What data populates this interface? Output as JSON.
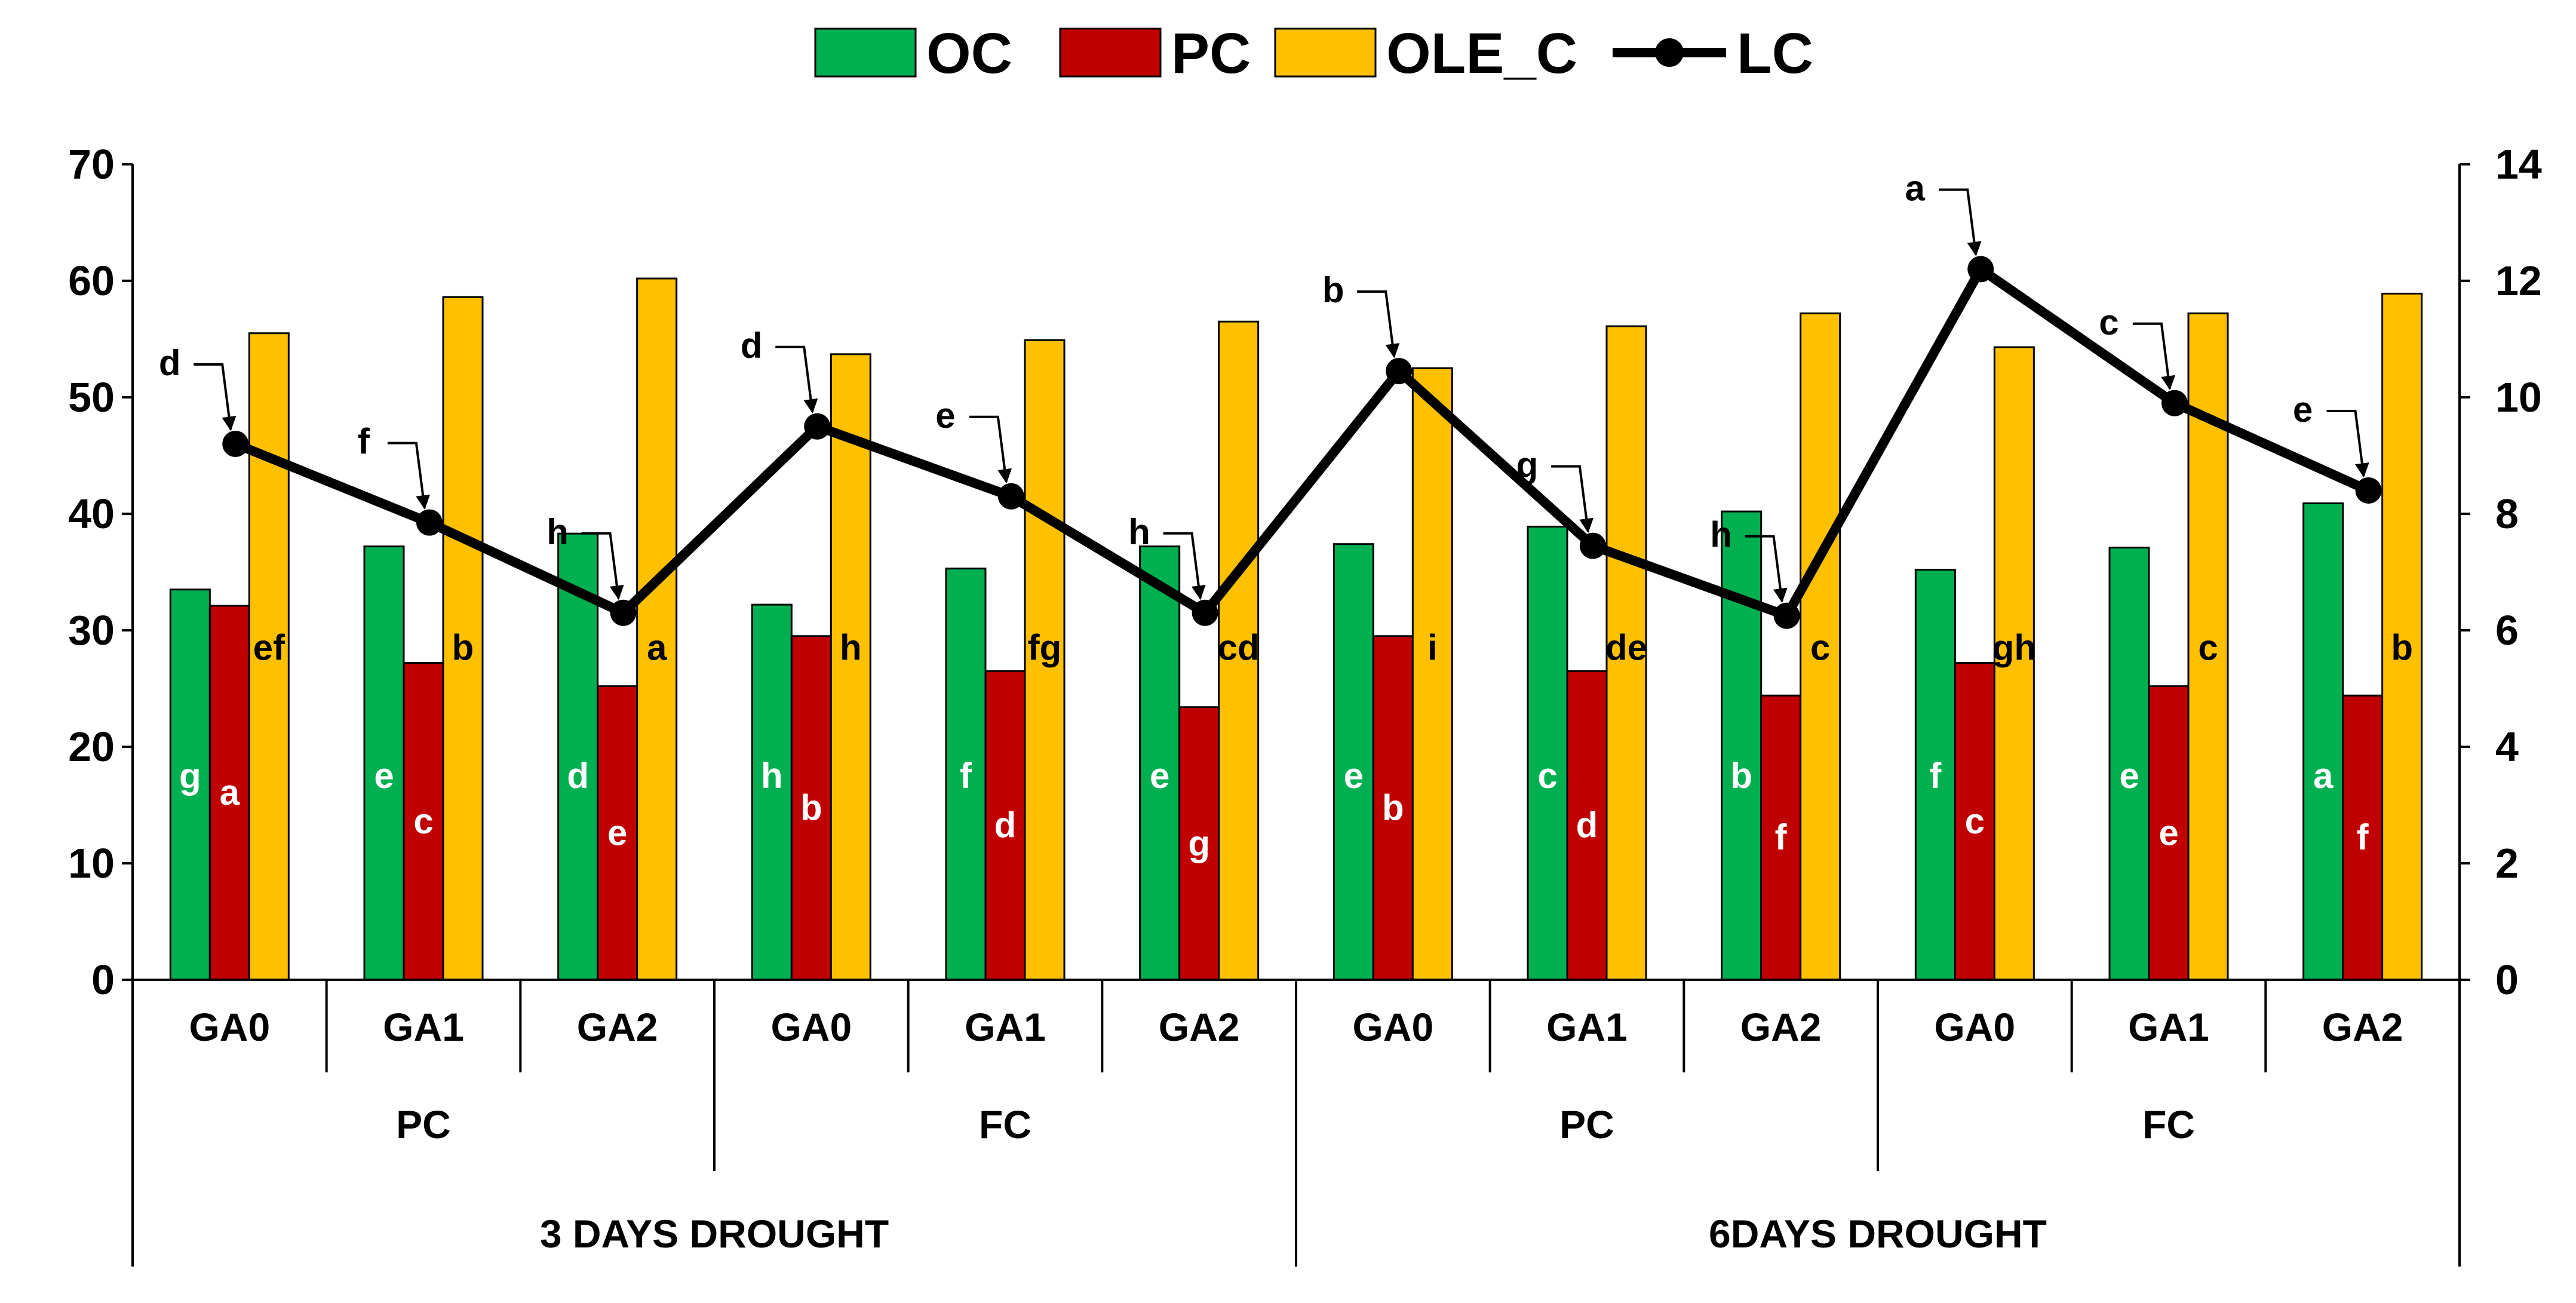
{
  "chart_data": {
    "type": "bar",
    "series": [
      {
        "name": "OC",
        "kind": "bar",
        "color": "#00b050",
        "values": [
          33.5,
          37.2,
          38.3,
          32.2,
          35.3,
          37.2,
          37.4,
          38.9,
          40.2,
          35.2,
          37.1,
          40.9
        ],
        "letters": [
          "g",
          "e",
          "d",
          "h",
          "f",
          "e",
          "e",
          "c",
          "b",
          "f",
          "e",
          "a"
        ]
      },
      {
        "name": "PC",
        "kind": "bar",
        "color": "#c00000",
        "values": [
          32.1,
          27.2,
          25.2,
          29.5,
          26.5,
          23.4,
          29.5,
          26.5,
          24.4,
          27.2,
          25.2,
          24.4
        ],
        "letters": [
          "a",
          "c",
          "e",
          "b",
          "d",
          "g",
          "b",
          "d",
          "f",
          "c",
          "e",
          "f"
        ]
      },
      {
        "name": "OLE_C",
        "kind": "bar",
        "color": "#ffc000",
        "values": [
          55.5,
          58.6,
          60.2,
          53.7,
          54.9,
          56.5,
          52.5,
          56.1,
          57.2,
          54.3,
          57.2,
          58.9
        ],
        "letters": [
          "ef",
          "b",
          "a",
          "h",
          "fg",
          "cd",
          "i",
          "de",
          "c",
          "gh",
          "c",
          "b"
        ]
      },
      {
        "name": "LC",
        "kind": "line",
        "axis": "right",
        "color": "#000000",
        "values": [
          9.2,
          7.85,
          6.3,
          9.5,
          8.3,
          6.3,
          10.45,
          7.45,
          6.25,
          12.2,
          9.9,
          8.4
        ],
        "letters": [
          "d",
          "f",
          "h",
          "d",
          "e",
          "h",
          "b",
          "g",
          "h",
          "a",
          "c",
          "e"
        ]
      }
    ],
    "categories": [
      "GA0",
      "GA1",
      "GA2",
      "GA0",
      "GA1",
      "GA2",
      "GA0",
      "GA1",
      "GA2",
      "GA0",
      "GA1",
      "GA2"
    ],
    "groups_level2": [
      {
        "label": "PC",
        "span": 3
      },
      {
        "label": "FC",
        "span": 3
      },
      {
        "label": "PC",
        "span": 3
      },
      {
        "label": "FC",
        "span": 3
      }
    ],
    "groups_level3": [
      {
        "label": "3 DAYS DROUGHT",
        "span": 6
      },
      {
        "label": "6DAYS DROUGHT",
        "span": 6
      }
    ],
    "y_left": {
      "min": 0,
      "max": 70,
      "step": 10,
      "ticks": [
        "0",
        "10",
        "20",
        "30",
        "40",
        "50",
        "60",
        "70"
      ]
    },
    "y_right": {
      "min": 0,
      "max": 14,
      "step": 2,
      "ticks": [
        "0",
        "2",
        "4",
        "6",
        "8",
        "10",
        "12",
        "14"
      ]
    },
    "legend_position": "top-center",
    "title": "",
    "xlabel": "",
    "ylabel": "",
    "grid": false
  }
}
